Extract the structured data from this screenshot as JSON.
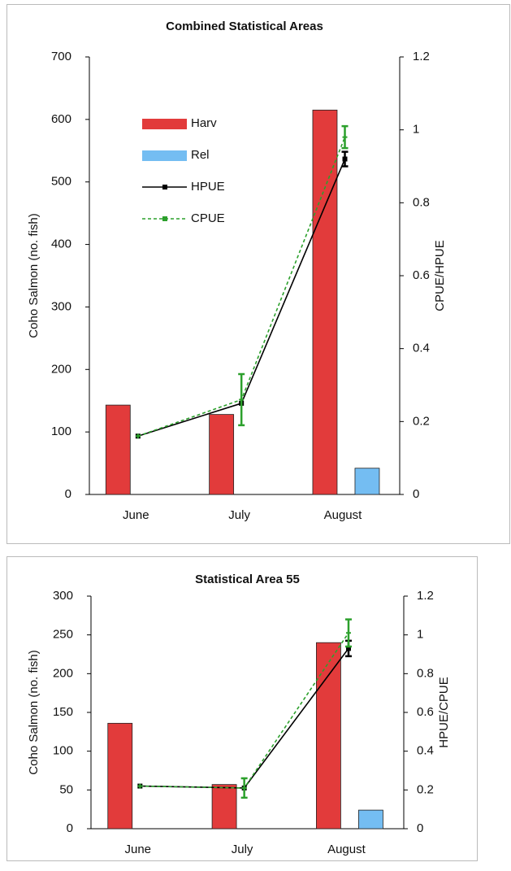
{
  "chart_data": [
    {
      "type": "bar",
      "title": "Combined Statistical Areas",
      "y_label": "Coho Salmon (no. fish)",
      "y2_label": "CPUE/HPUE",
      "categories": [
        "June",
        "July",
        "August"
      ],
      "ylim": [
        0,
        700
      ],
      "yticks": [
        0,
        100,
        200,
        300,
        400,
        500,
        600,
        700
      ],
      "y2lim": [
        0,
        1.2
      ],
      "y2ticks": [
        0,
        0.2,
        0.4,
        0.6,
        0.8,
        1,
        1.2
      ],
      "legend": true,
      "series": [
        {
          "name": "Harv",
          "type": "bar",
          "color": "#e23b3b",
          "values": [
            143,
            128,
            615
          ]
        },
        {
          "name": "Rel",
          "type": "bar",
          "color": "#74bdf2",
          "values": [
            0,
            0,
            42
          ]
        },
        {
          "name": "HPUE",
          "type": "line",
          "axis": "y2",
          "color": "#000000",
          "values": [
            0.16,
            0.25,
            0.92
          ],
          "errors": [
            null,
            null,
            0.02
          ]
        },
        {
          "name": "CPUE",
          "type": "line",
          "axis": "y2",
          "color": "#2ca02c",
          "dashed": true,
          "values": [
            0.16,
            0.26,
            0.98
          ],
          "errors": [
            null,
            0.07,
            0.03
          ]
        }
      ]
    },
    {
      "type": "bar",
      "title": "Statistical Area 55",
      "y_label": "Coho Salmon (no. fish)",
      "y2_label": "HPUE/CPUE",
      "categories": [
        "June",
        "July",
        "August"
      ],
      "ylim": [
        0,
        300
      ],
      "yticks": [
        0,
        50,
        100,
        150,
        200,
        250,
        300
      ],
      "y2lim": [
        0,
        1.2
      ],
      "y2ticks": [
        0,
        0.2,
        0.4,
        0.6,
        0.8,
        1,
        1.2
      ],
      "legend": false,
      "series": [
        {
          "type": "bar",
          "color": "#e23b3b",
          "values": [
            136,
            57,
            240
          ]
        },
        {
          "type": "bar",
          "color": "#74bdf2",
          "values": [
            0,
            0,
            24
          ]
        },
        {
          "type": "line",
          "axis": "y2",
          "color": "#000000",
          "values": [
            0.22,
            0.21,
            0.93
          ],
          "errors": [
            null,
            null,
            0.04
          ]
        },
        {
          "type": "line",
          "axis": "y2",
          "color": "#2ca02c",
          "dashed": true,
          "values": [
            0.22,
            0.21,
            1.01
          ],
          "errors": [
            null,
            0.05,
            0.07
          ]
        }
      ]
    }
  ]
}
